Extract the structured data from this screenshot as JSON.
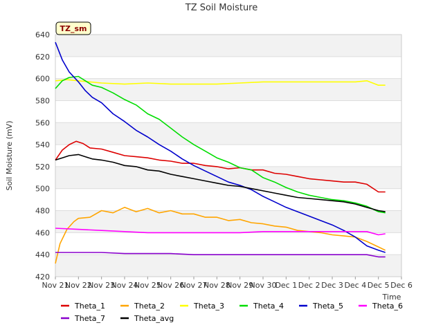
{
  "chart_data": {
    "type": "line",
    "title": "TZ Soil Moisture",
    "xlabel": "Time",
    "ylabel": "Soil Moisture (mV)",
    "site_label": "TZ_sm",
    "x_ticks": [
      "Nov 21",
      "Nov 22",
      "Nov 23",
      "Nov 24",
      "Nov 25",
      "Nov 26",
      "Nov 27",
      "Nov 28",
      "Nov 29",
      "Nov 30",
      "Dec 1",
      "Dec 2",
      "Dec 3",
      "Dec 4",
      "Dec 5",
      "Dec 6"
    ],
    "xlim": [
      0,
      15
    ],
    "ylim": [
      420,
      640
    ],
    "y_ticks": [
      420,
      440,
      460,
      480,
      500,
      520,
      540,
      560,
      580,
      600,
      620,
      640
    ],
    "grid": true,
    "legend_position": "bottom",
    "x_unit_note": "x values are days after Nov 21",
    "series": [
      {
        "name": "Theta_1",
        "color": "#dd0000",
        "x": [
          0,
          0.3,
          0.6,
          0.9,
          1.2,
          1.5,
          2.0,
          2.5,
          3.0,
          3.5,
          4.0,
          4.5,
          5.0,
          5.5,
          6.0,
          6.5,
          7.0,
          7.5,
          8.0,
          8.5,
          9.0,
          9.5,
          10.0,
          10.5,
          11.0,
          11.5,
          12.0,
          12.5,
          13.0,
          13.5,
          14.0,
          14.3
        ],
        "y": [
          526,
          535,
          540,
          543,
          541,
          537,
          536,
          533,
          530,
          529,
          528,
          526,
          525,
          523,
          523,
          521,
          520,
          518,
          519,
          517,
          517,
          514,
          513,
          511,
          509,
          508,
          507,
          506,
          506,
          504,
          497,
          497
        ]
      },
      {
        "name": "Theta_2",
        "color": "#ffa500",
        "x": [
          0,
          0.2,
          0.5,
          0.8,
          1.0,
          1.5,
          2.0,
          2.5,
          3.0,
          3.5,
          4.0,
          4.5,
          5.0,
          5.5,
          6.0,
          6.5,
          7.0,
          7.5,
          8.0,
          8.5,
          9.0,
          9.5,
          10.0,
          10.5,
          11.0,
          11.5,
          12.0,
          12.5,
          13.0,
          13.5,
          14.0,
          14.3
        ],
        "y": [
          432,
          450,
          463,
          470,
          473,
          474,
          480,
          478,
          483,
          479,
          482,
          478,
          480,
          477,
          477,
          474,
          474,
          471,
          472,
          469,
          468,
          466,
          465,
          462,
          461,
          460,
          458,
          457,
          456,
          452,
          447,
          444
        ]
      },
      {
        "name": "Theta_3",
        "color": "#ffff00",
        "x": [
          0,
          0.5,
          1.0,
          1.5,
          2.0,
          3.0,
          4.0,
          5.0,
          6.0,
          7.0,
          8.0,
          9.0,
          10.0,
          11.0,
          12.0,
          13.0,
          13.5,
          14.0,
          14.3
        ],
        "y": [
          598,
          599,
          598,
          597,
          596,
          595,
          596,
          595,
          595,
          595,
          596,
          597,
          597,
          597,
          597,
          597,
          598,
          594,
          594
        ]
      },
      {
        "name": "Theta_4",
        "color": "#00dd00",
        "x": [
          0,
          0.3,
          0.6,
          1.0,
          1.3,
          1.6,
          2.0,
          2.5,
          3.0,
          3.5,
          4.0,
          4.5,
          5.0,
          5.5,
          6.0,
          6.5,
          7.0,
          7.5,
          8.0,
          8.5,
          9.0,
          9.5,
          10.0,
          10.5,
          11.0,
          11.5,
          12.0,
          12.5,
          13.0,
          13.5,
          14.0,
          14.3
        ],
        "y": [
          591,
          598,
          601,
          602,
          598,
          594,
          592,
          587,
          581,
          576,
          568,
          563,
          555,
          547,
          540,
          534,
          528,
          524,
          519,
          517,
          510,
          506,
          501,
          497,
          494,
          492,
          490,
          489,
          487,
          484,
          479,
          478
        ]
      },
      {
        "name": "Theta_5",
        "color": "#0000cc",
        "x": [
          0,
          0.3,
          0.6,
          1.0,
          1.3,
          1.6,
          2.0,
          2.5,
          3.0,
          3.5,
          4.0,
          4.5,
          5.0,
          5.5,
          6.0,
          6.5,
          7.0,
          7.5,
          8.0,
          8.5,
          9.0,
          9.5,
          10.0,
          10.5,
          11.0,
          11.5,
          12.0,
          12.5,
          13.0,
          13.5,
          14.0,
          14.3
        ],
        "y": [
          633,
          617,
          606,
          597,
          589,
          583,
          578,
          568,
          561,
          553,
          547,
          540,
          534,
          527,
          521,
          516,
          511,
          506,
          503,
          499,
          493,
          488,
          483,
          479,
          475,
          471,
          467,
          462,
          456,
          448,
          444,
          442
        ]
      },
      {
        "name": "Theta_6",
        "color": "#ff00ff",
        "x": [
          0,
          1.0,
          2.0,
          3.0,
          4.0,
          5.0,
          6.0,
          7.0,
          8.0,
          9.0,
          10.0,
          11.0,
          12.0,
          13.0,
          13.5,
          14.0,
          14.3
        ],
        "y": [
          464,
          463,
          462,
          461,
          460,
          460,
          460,
          460,
          460,
          461,
          461,
          461,
          461,
          461,
          461,
          458,
          459
        ]
      },
      {
        "name": "Theta_7",
        "color": "#8800cc",
        "x": [
          0,
          1.0,
          2.0,
          3.0,
          4.0,
          5.0,
          6.0,
          7.0,
          8.0,
          9.0,
          10.0,
          11.0,
          12.0,
          13.0,
          13.5,
          14.0,
          14.3
        ],
        "y": [
          442,
          442,
          442,
          441,
          441,
          441,
          440,
          440,
          440,
          440,
          440,
          440,
          440,
          440,
          440,
          438,
          438
        ]
      },
      {
        "name": "Theta_avg",
        "color": "#000000",
        "x": [
          0,
          0.3,
          0.6,
          1.0,
          1.3,
          1.6,
          2.0,
          2.5,
          3.0,
          3.5,
          4.0,
          4.5,
          5.0,
          5.5,
          6.0,
          6.5,
          7.0,
          7.5,
          8.0,
          8.5,
          9.0,
          9.5,
          10.0,
          10.5,
          11.0,
          11.5,
          12.0,
          12.5,
          13.0,
          13.5,
          14.0,
          14.3
        ],
        "y": [
          526,
          528,
          530,
          531,
          529,
          527,
          526,
          524,
          521,
          520,
          517,
          516,
          513,
          511,
          509,
          507,
          505,
          503,
          502,
          500,
          498,
          496,
          494,
          492,
          491,
          490,
          489,
          488,
          486,
          483,
          480,
          479
        ]
      }
    ]
  }
}
